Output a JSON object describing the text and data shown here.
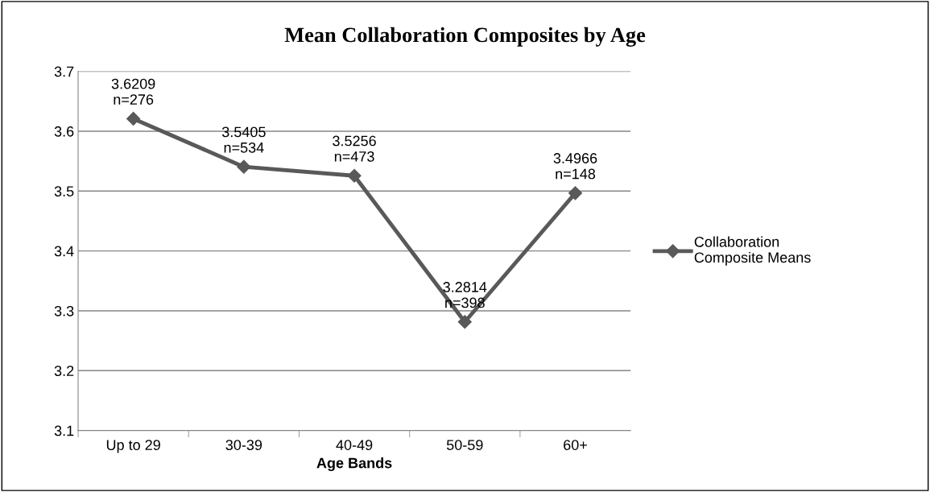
{
  "chart_data": {
    "type": "line",
    "title": "Mean Collaboration Composites by Age",
    "xlabel": "Age Bands",
    "categories": [
      "Up to 29",
      "30-39",
      "40-49",
      "50-59",
      "60+"
    ],
    "series": [
      {
        "name": "Collaboration Composite Means",
        "color": "#595959",
        "values": [
          3.6209,
          3.5405,
          3.5256,
          3.2814,
          3.4966
        ],
        "value_labels": [
          "3.6209\nn=276",
          "3.5405\nn=534",
          "3.5256\nn=473",
          "3.2814\nn=398",
          "3.4966\nn=148"
        ]
      }
    ],
    "ylim": [
      3.1,
      3.7
    ],
    "yticks": [
      3.1,
      3.2,
      3.3,
      3.4,
      3.5,
      3.6,
      3.7
    ],
    "grid": "y",
    "legend": "right",
    "marker": "diamond",
    "line_style": "solid"
  }
}
